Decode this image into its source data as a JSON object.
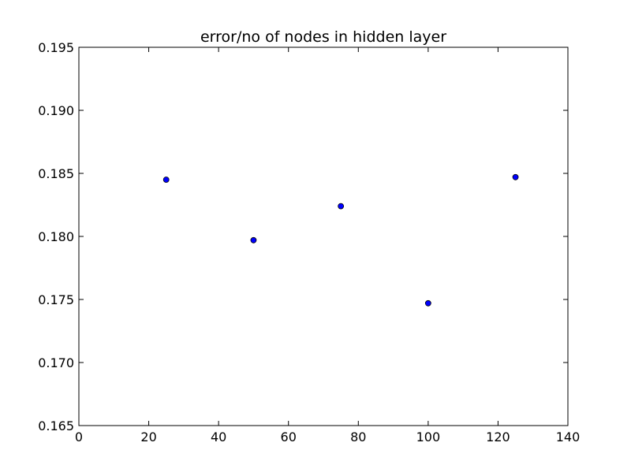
{
  "chart_data": {
    "type": "scatter",
    "title": "error/no of nodes in hidden layer",
    "xlabel": "",
    "ylabel": "",
    "xlim": [
      0,
      140
    ],
    "ylim": [
      0.165,
      0.195
    ],
    "x_ticks": [
      0,
      20,
      40,
      60,
      80,
      100,
      120,
      140
    ],
    "x_tick_labels": [
      "0",
      "20",
      "40",
      "60",
      "80",
      "100",
      "120",
      "140"
    ],
    "y_ticks": [
      0.165,
      0.17,
      0.175,
      0.18,
      0.185,
      0.19,
      0.195
    ],
    "y_tick_labels": [
      "0.165",
      "0.170",
      "0.175",
      "0.180",
      "0.185",
      "0.190",
      "0.195"
    ],
    "grid": false,
    "series": [
      {
        "color": "#0000ff",
        "points": [
          {
            "x": 25,
            "y": 0.1845
          },
          {
            "x": 50,
            "y": 0.1797
          },
          {
            "x": 75,
            "y": 0.1824
          },
          {
            "x": 100,
            "y": 0.1747
          },
          {
            "x": 125,
            "y": 0.1847
          }
        ]
      }
    ]
  }
}
